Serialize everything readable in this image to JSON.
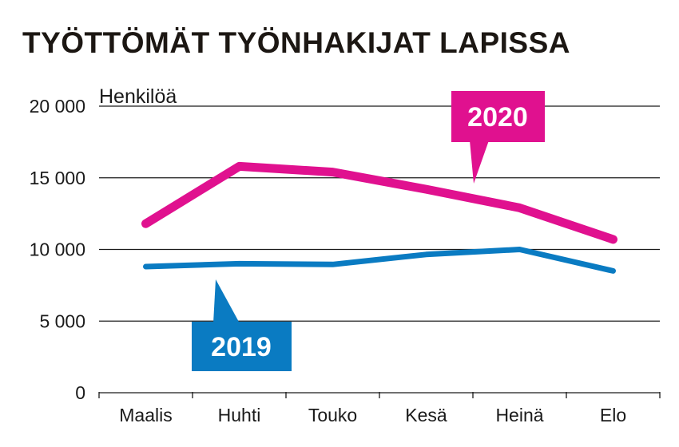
{
  "chart_data": {
    "type": "line",
    "title": "TYÖTTÖMÄT TYÖNHAKIJAT LAPISSA",
    "ylabel": "Henkilöä",
    "xlabel": "",
    "categories": [
      "Maalis",
      "Huhti",
      "Touko",
      "Kesä",
      "Heinä",
      "Elo"
    ],
    "ylim": [
      0,
      20000
    ],
    "yticks": [
      0,
      5000,
      10000,
      15000,
      20000
    ],
    "ytick_labels": [
      "0",
      "5 000",
      "10 000",
      "15 000",
      "20 000"
    ],
    "grid": true,
    "series": [
      {
        "name": "2020",
        "label": "2020",
        "color": "#e0118f",
        "values": [
          11800,
          15800,
          15400,
          14200,
          12900,
          10700
        ]
      },
      {
        "name": "2019",
        "label": "2019",
        "color": "#0a7bc2",
        "values": [
          8800,
          9000,
          8950,
          9650,
          10000,
          8500
        ]
      }
    ]
  }
}
